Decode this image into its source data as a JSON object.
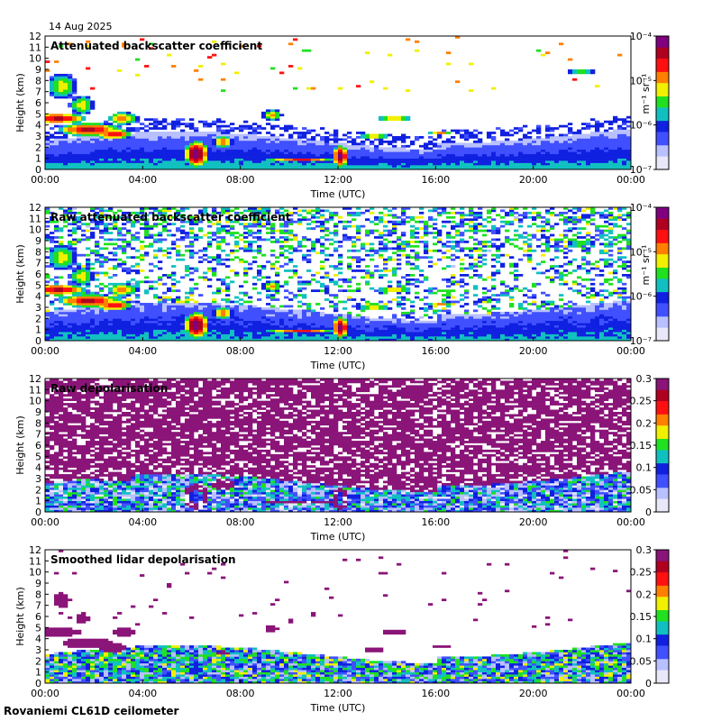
{
  "date": "14 Aug 2025",
  "footer": "Rovaniemi CL61D ceilometer",
  "colors": {
    "scale": [
      "#e8e8f8",
      "#b8c0ff",
      "#4050ff",
      "#1020e0",
      "#10c0c0",
      "#20e020",
      "#f0f000",
      "#ff8000",
      "#ff1010",
      "#b00020",
      "#800080"
    ],
    "depol_bg": "#8a1478"
  },
  "chart_data": [
    {
      "type": "heatmap",
      "title": "Attenuated backscatter coefficient",
      "xlabel": "Time (UTC)",
      "ylabel": "Height (km)",
      "x_ticks": [
        "00:00",
        "04:00",
        "08:00",
        "12:00",
        "16:00",
        "20:00",
        "00:00"
      ],
      "y_ticks": [
        "0",
        "1",
        "2",
        "3",
        "4",
        "5",
        "6",
        "7",
        "8",
        "9",
        "10",
        "11",
        "12"
      ],
      "ylim": [
        0,
        12
      ],
      "colorbar": {
        "scale": "log",
        "ticks": [
          "10⁻⁷",
          "10⁻⁶",
          "10⁻⁵",
          "10⁻⁴"
        ],
        "unit": "m⁻¹ sr⁻¹"
      },
      "style": "smooth"
    },
    {
      "type": "heatmap",
      "title": "Raw attenuated backscatter coefficient",
      "xlabel": "Time (UTC)",
      "ylabel": "Height (km)",
      "x_ticks": [
        "00:00",
        "04:00",
        "08:00",
        "12:00",
        "16:00",
        "20:00",
        "00:00"
      ],
      "y_ticks": [
        "0",
        "1",
        "2",
        "3",
        "4",
        "5",
        "6",
        "7",
        "8",
        "9",
        "10",
        "11",
        "12"
      ],
      "ylim": [
        0,
        12
      ],
      "colorbar": {
        "scale": "log",
        "ticks": [
          "10⁻⁷",
          "10⁻⁶",
          "10⁻⁵",
          "10⁻⁴"
        ],
        "unit": "m⁻¹ sr⁻¹"
      },
      "style": "noisy"
    },
    {
      "type": "heatmap",
      "title": "Raw depolarisation",
      "xlabel": "Time (UTC)",
      "ylabel": "Height (km)",
      "x_ticks": [
        "00:00",
        "04:00",
        "08:00",
        "12:00",
        "16:00",
        "20:00",
        "00:00"
      ],
      "y_ticks": [
        "0",
        "1",
        "2",
        "3",
        "4",
        "5",
        "6",
        "7",
        "8",
        "9",
        "10",
        "11",
        "12"
      ],
      "ylim": [
        0,
        12
      ],
      "colorbar": {
        "scale": "linear",
        "ticks": [
          "0",
          "0.05",
          "0.1",
          "0.15",
          "0.2",
          "0.25",
          "0.3"
        ],
        "unit": ""
      },
      "style": "depol_raw"
    },
    {
      "type": "heatmap",
      "title": "Smoothed lidar depolarisation",
      "xlabel": "Time (UTC)",
      "ylabel": "Height (km)",
      "x_ticks": [
        "00:00",
        "04:00",
        "08:00",
        "12:00",
        "16:00",
        "20:00",
        "00:00"
      ],
      "y_ticks": [
        "0",
        "1",
        "2",
        "3",
        "4",
        "5",
        "6",
        "7",
        "8",
        "9",
        "10",
        "11",
        "12"
      ],
      "ylim": [
        0,
        12
      ],
      "colorbar": {
        "scale": "linear",
        "ticks": [
          "0",
          "0.05",
          "0.1",
          "0.15",
          "0.2",
          "0.25",
          "0.3"
        ],
        "unit": ""
      },
      "style": "depol_smooth"
    }
  ]
}
